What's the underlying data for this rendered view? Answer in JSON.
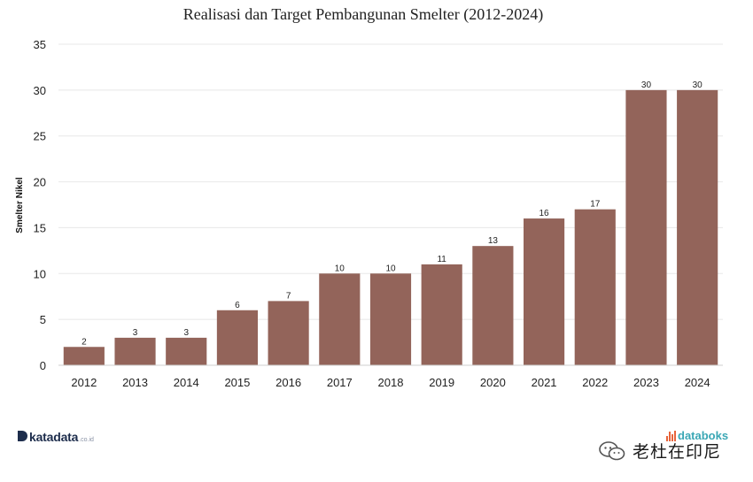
{
  "chart_data": {
    "type": "bar",
    "title": "Realisasi dan Target Pembangunan Smelter (2012-2024)",
    "xlabel": "",
    "ylabel": "Smelter Nikel",
    "categories": [
      "2012",
      "2013",
      "2014",
      "2015",
      "2016",
      "2017",
      "2018",
      "2019",
      "2020",
      "2021",
      "2022",
      "2023",
      "2024"
    ],
    "values": [
      2,
      3,
      3,
      6,
      7,
      10,
      10,
      11,
      13,
      16,
      17,
      30,
      30
    ],
    "ylim": [
      0,
      35
    ],
    "yticks": [
      0,
      5,
      10,
      15,
      20,
      25,
      30,
      35
    ],
    "grid": true,
    "bar_color": "#93645a"
  },
  "branding": {
    "katadata_name": "katadata",
    "katadata_domain": ".co.id",
    "databoks_name": "databoks",
    "watermark_text": "老杜在印尼"
  }
}
